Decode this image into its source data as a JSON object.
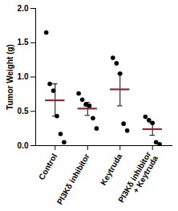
{
  "chart_data": {
    "type": "scatter",
    "y_label": "Tumor Weight (g)",
    "categories": [
      "Control",
      "PI3Kδ inhibitor",
      "Keytruda",
      "PI3Kδ inhibitor\n+ Keytruda"
    ],
    "values": [
      [
        1.65,
        0.9,
        0.8,
        0.43,
        0.17,
        0.05
      ],
      [
        0.76,
        0.67,
        0.6,
        0.58,
        0.4,
        0.25
      ],
      [
        1.28,
        1.2,
        1.05,
        0.32,
        0.22
      ],
      [
        0.42,
        0.37,
        0.33,
        0.05,
        0.02
      ]
    ],
    "mean": [
      0.66,
      0.54,
      0.82,
      0.24
    ],
    "error_low": [
      0.43,
      0.44,
      0.58,
      0.15
    ],
    "error_high": [
      0.9,
      0.63,
      1.05,
      0.33
    ],
    "color": "#000000",
    "mean_color": "#8b2a3a",
    "ylim": [
      0,
      2.0
    ],
    "yticks": [
      {
        "value": 0,
        "label": "0.0"
      },
      0.5,
      {
        "value": 1.0,
        "label": "1.0"
      },
      1.5,
      {
        "value": 2.0,
        "label": "2.0"
      }
    ],
    "grid": false
  }
}
